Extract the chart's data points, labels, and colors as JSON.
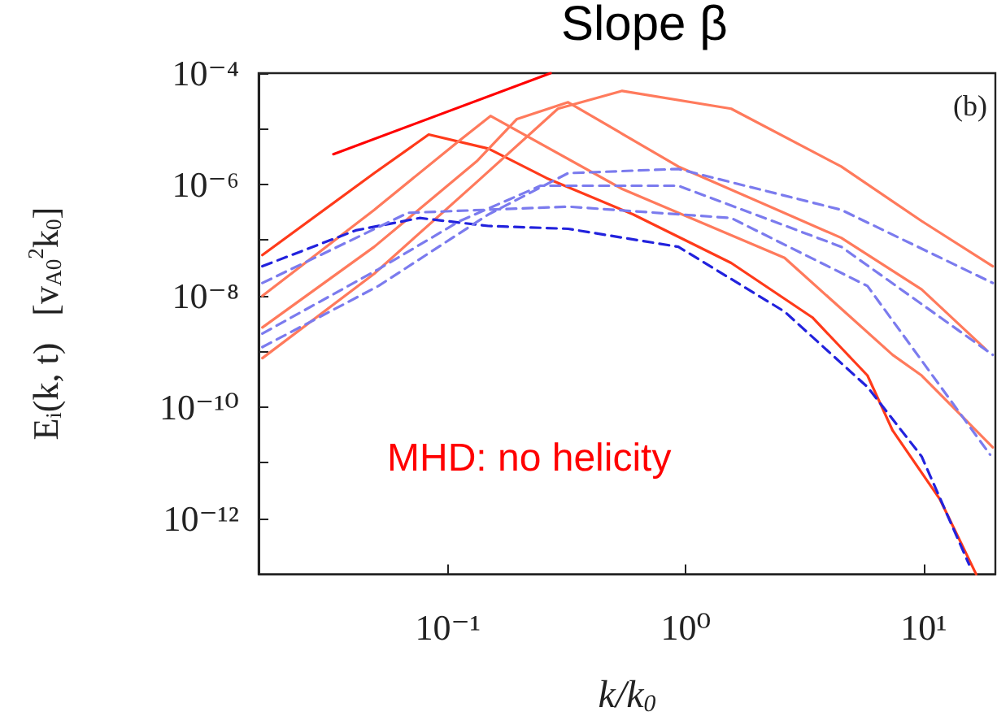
{
  "chart_data": {
    "type": "line",
    "xlabel": "k/k$_{0}$",
    "ylabel": "E$_{i}$(k, t)   [v$_{A0}$$^{2}$k$_{0}$]",
    "log": "xy",
    "grid": false,
    "marker": "none",
    "xlim": [
      0.016,
      20
    ],
    "ylim": [
      1e-13,
      0.0001
    ],
    "xticks": [
      {
        "value": 0.1,
        "label": "10⁻¹"
      },
      {
        "value": 1,
        "label": "10⁰"
      },
      {
        "value": 10,
        "label": "10¹"
      }
    ],
    "yticks": [
      {
        "value": 1e-12,
        "label": "10⁻¹²"
      },
      {
        "value": 1e-11,
        "label": null
      },
      {
        "value": 1e-10,
        "label": "10⁻¹⁰"
      },
      {
        "value": 1e-09,
        "label": null
      },
      {
        "value": 1e-08,
        "label": "10⁻⁸"
      },
      {
        "value": 1e-07,
        "label": null
      },
      {
        "value": 1e-06,
        "label": "10⁻⁶"
      },
      {
        "value": 1e-05,
        "label": null
      },
      {
        "value": 0.0001,
        "label": "10⁻⁴"
      }
    ],
    "annotations": [
      "Slope β",
      "(b)",
      "MHD: no helicity"
    ],
    "series": [
      {
        "color": "#ff3a1a",
        "line_style": "solid",
        "x": [
          0.0166,
          0.049,
          0.083,
          0.148,
          0.26,
          0.6,
          1.55,
          3.4,
          5.8,
          7.4,
          11.7,
          16.6
        ],
        "values": [
          5.4e-08,
          1.6e-06,
          7.9e-06,
          4.4e-06,
          1.3e-06,
          2.9e-07,
          3.9e-08,
          4.1e-09,
          3.7e-10,
          3.8e-11,
          2.2e-12,
          1e-13
        ]
      },
      {
        "color": "#ff7a5c",
        "line_style": "solid",
        "x": [
          0.0166,
          0.049,
          0.112,
          0.151,
          0.54,
          2.6,
          7.4,
          9.8,
          19.5
        ],
        "values": [
          1e-08,
          3.5e-07,
          6.2e-06,
          1.7e-05,
          8.3e-07,
          4.8e-08,
          8.7e-10,
          3.7e-10,
          1.9e-11
        ]
      },
      {
        "color": "#ff7a5c",
        "line_style": "solid",
        "x": [
          0.0166,
          0.049,
          0.132,
          0.195,
          0.32,
          0.93,
          4.5,
          9.8,
          18.2
        ],
        "values": [
          2.7e-09,
          7.6e-08,
          2.6e-06,
          1.5e-05,
          3e-05,
          2.1e-06,
          1.1e-07,
          1.3e-08,
          1.1e-09
        ]
      },
      {
        "color": "#ff7a5c",
        "line_style": "solid",
        "x": [
          0.0166,
          0.049,
          0.132,
          0.29,
          0.54,
          1.55,
          4.5,
          9.8,
          19.5
        ],
        "values": [
          7.6e-10,
          2.5e-08,
          1.1e-06,
          2.3e-05,
          4.8e-05,
          2.3e-05,
          2.1e-06,
          2.2e-07,
          3.4e-08
        ]
      },
      {
        "color": "#2222dd",
        "line_style": "dashed",
        "x": [
          0.0166,
          0.041,
          0.076,
          0.148,
          0.32,
          0.93,
          2.6,
          5.8,
          9.8,
          15.5
        ],
        "values": [
          3.4e-08,
          1.5e-07,
          2.5e-07,
          1.8e-07,
          1.6e-07,
          7.6e-08,
          5.2e-09,
          2.3e-10,
          1.3e-11,
          1.5e-13
        ]
      },
      {
        "color": "#7b7bee",
        "line_style": "dashed",
        "x": [
          0.0166,
          0.068,
          0.32,
          1.55,
          5.8,
          19
        ],
        "values": [
          1.7e-08,
          3.1e-07,
          4e-07,
          2.5e-07,
          1.5e-08,
          1.4e-11
        ]
      },
      {
        "color": "#7b7bee",
        "line_style": "dashed",
        "x": [
          0.0166,
          0.051,
          0.112,
          0.245,
          0.93,
          4.5,
          19.5
        ],
        "values": [
          2.1e-09,
          3e-08,
          2.2e-07,
          9.5e-07,
          9.5e-07,
          7.6e-08,
          8.7e-10
        ]
      },
      {
        "color": "#7b7bee",
        "line_style": "dashed",
        "x": [
          0.0166,
          0.051,
          0.148,
          0.32,
          0.93,
          4.5,
          19.5
        ],
        "values": [
          1.2e-09,
          1.5e-08,
          2.9e-07,
          1.6e-06,
          1.9e-06,
          3.5e-07,
          1.7e-08
        ]
      },
      {
        "color": "#ff0000",
        "line_style": "solid",
        "x": [
          0.033,
          0.27
        ],
        "values": [
          3.5e-06,
          0.0001
        ]
      }
    ]
  }
}
